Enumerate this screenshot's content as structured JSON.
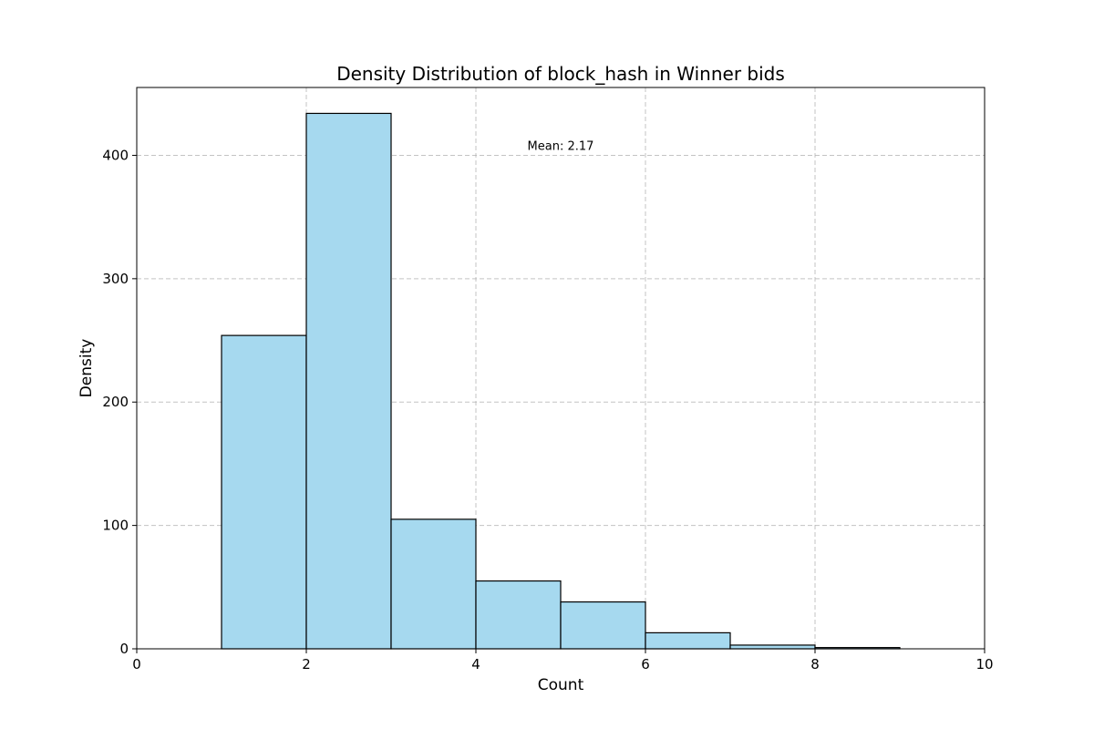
{
  "chart_data": {
    "type": "bar",
    "title": "Density Distribution of block_hash in Winner bids",
    "xlabel": "Count",
    "ylabel": "Density",
    "xlim": [
      0,
      10
    ],
    "ylim": [
      0,
      455
    ],
    "x_ticks": [
      0,
      2,
      4,
      6,
      8,
      10
    ],
    "y_ticks": [
      0,
      100,
      200,
      300,
      400
    ],
    "grid": true,
    "bar_color": "#a6d9ef",
    "edge_color": "#000000",
    "bins": [
      {
        "start": 1,
        "end": 2,
        "value": 254
      },
      {
        "start": 2,
        "end": 3,
        "value": 434
      },
      {
        "start": 3,
        "end": 4,
        "value": 105
      },
      {
        "start": 4,
        "end": 5,
        "value": 55
      },
      {
        "start": 5,
        "end": 6,
        "value": 38
      },
      {
        "start": 6,
        "end": 7,
        "value": 13
      },
      {
        "start": 7,
        "end": 8,
        "value": 3
      },
      {
        "start": 8,
        "end": 9,
        "value": 1
      }
    ],
    "annotations": [
      {
        "text": "Mean: 2.17",
        "x": 5.0,
        "y": 408
      }
    ]
  }
}
